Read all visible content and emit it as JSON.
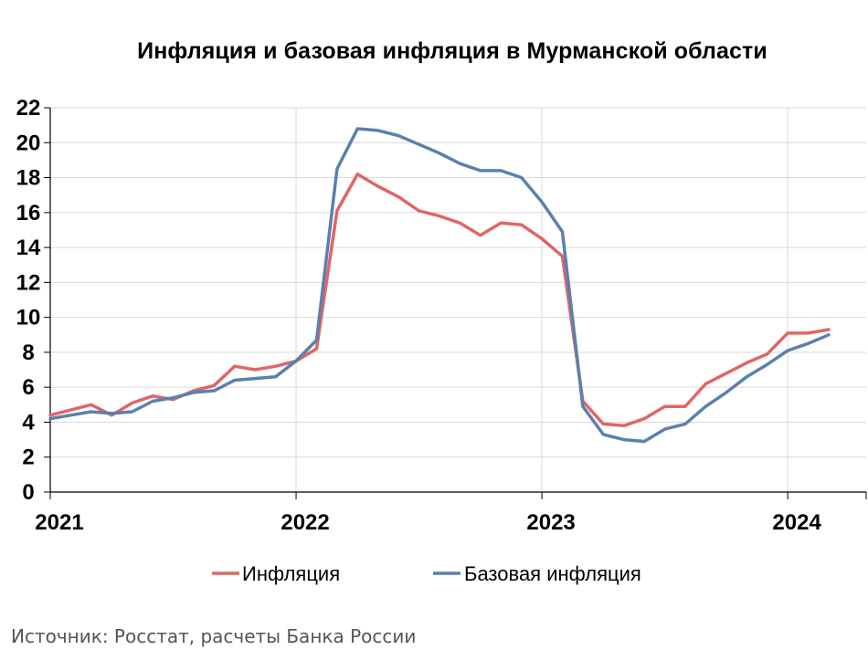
{
  "chart_data": {
    "type": "line",
    "title": "Инфляция и базовая инфляция в Мурманской области",
    "xlabel": "",
    "ylabel": "",
    "x_tick_labels": [
      "2021",
      "2022",
      "2023",
      "2024"
    ],
    "y_ticks": [
      0,
      2,
      4,
      6,
      8,
      10,
      12,
      14,
      16,
      18,
      20,
      22
    ],
    "ylim": [
      0,
      22
    ],
    "grid": "horizontal",
    "legend_position": "bottom",
    "x": [
      "2021-01",
      "2021-02",
      "2021-03",
      "2021-04",
      "2021-05",
      "2021-06",
      "2021-07",
      "2021-08",
      "2021-09",
      "2021-10",
      "2021-11",
      "2021-12",
      "2022-01",
      "2022-02",
      "2022-03",
      "2022-04",
      "2022-05",
      "2022-06",
      "2022-07",
      "2022-08",
      "2022-09",
      "2022-10",
      "2022-11",
      "2022-12",
      "2023-01",
      "2023-02",
      "2023-03",
      "2023-04",
      "2023-05",
      "2023-06",
      "2023-07",
      "2023-08",
      "2023-09",
      "2023-10",
      "2023-11",
      "2023-12",
      "2024-01",
      "2024-02",
      "2024-03"
    ],
    "series": [
      {
        "name": "Инфляция",
        "color": "#e06666",
        "values": [
          4.4,
          4.7,
          5.0,
          4.4,
          5.1,
          5.5,
          5.3,
          5.8,
          6.1,
          7.2,
          7.0,
          7.2,
          7.5,
          8.2,
          16.1,
          18.2,
          17.5,
          16.9,
          16.1,
          15.8,
          15.4,
          14.7,
          15.4,
          15.3,
          14.5,
          13.5,
          5.2,
          3.9,
          3.8,
          4.2,
          4.9,
          4.9,
          6.2,
          6.8,
          7.4,
          7.9,
          9.1,
          9.1,
          9.3
        ]
      },
      {
        "name": "Базовая инфляция",
        "color": "#5b80ad",
        "values": [
          4.2,
          4.4,
          4.6,
          4.5,
          4.6,
          5.2,
          5.4,
          5.7,
          5.8,
          6.4,
          6.5,
          6.6,
          7.5,
          8.7,
          18.5,
          20.8,
          20.7,
          20.4,
          19.9,
          19.4,
          18.8,
          18.4,
          18.4,
          18.0,
          16.6,
          14.9,
          4.9,
          3.3,
          3.0,
          2.9,
          3.6,
          3.9,
          4.9,
          5.7,
          6.6,
          7.3,
          8.1,
          8.5,
          9.0
        ]
      }
    ]
  },
  "source_note": "Источник: Росстат, расчеты Банка России"
}
